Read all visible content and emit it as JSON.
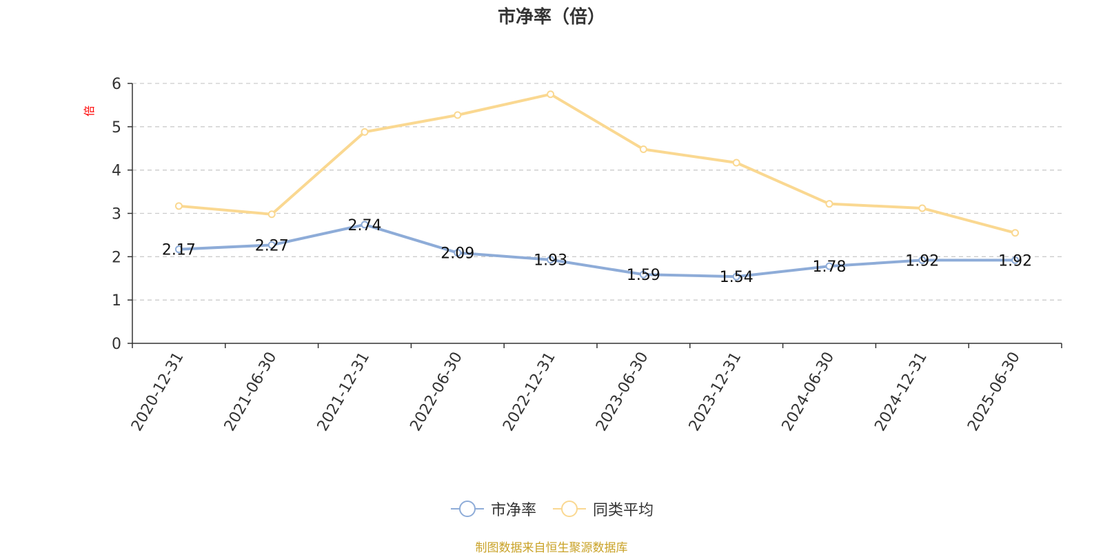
{
  "chart_data": {
    "type": "line",
    "title": "市净率（倍）",
    "ylabel": "倍",
    "xlabel": "",
    "ylim": [
      0,
      6
    ],
    "yticks": [
      0,
      1,
      2,
      3,
      4,
      5,
      6
    ],
    "grid": true,
    "legend_position": "bottom",
    "categories": [
      "2020-12-31",
      "2021-06-30",
      "2021-12-31",
      "2022-06-30",
      "2022-12-31",
      "2023-06-30",
      "2023-12-31",
      "2024-06-30",
      "2024-12-31",
      "2025-06-30"
    ],
    "series": [
      {
        "name": "市净率",
        "color": "#8eacd8",
        "show_data_labels": true,
        "values": [
          2.17,
          2.27,
          2.74,
          2.09,
          1.93,
          1.59,
          1.54,
          1.78,
          1.92,
          1.92
        ]
      },
      {
        "name": "同类平均",
        "color": "#fad891",
        "show_data_labels": false,
        "values": [
          3.17,
          2.98,
          4.88,
          5.27,
          5.75,
          4.48,
          4.17,
          3.22,
          3.12,
          2.55
        ]
      }
    ]
  },
  "footer": {
    "source_note": "制图数据来自恒生聚源数据库"
  },
  "colors": {
    "axis": "#333333",
    "grid": "#cccccc",
    "ylabel": "#ff0000",
    "source_note": "#c9a227"
  }
}
